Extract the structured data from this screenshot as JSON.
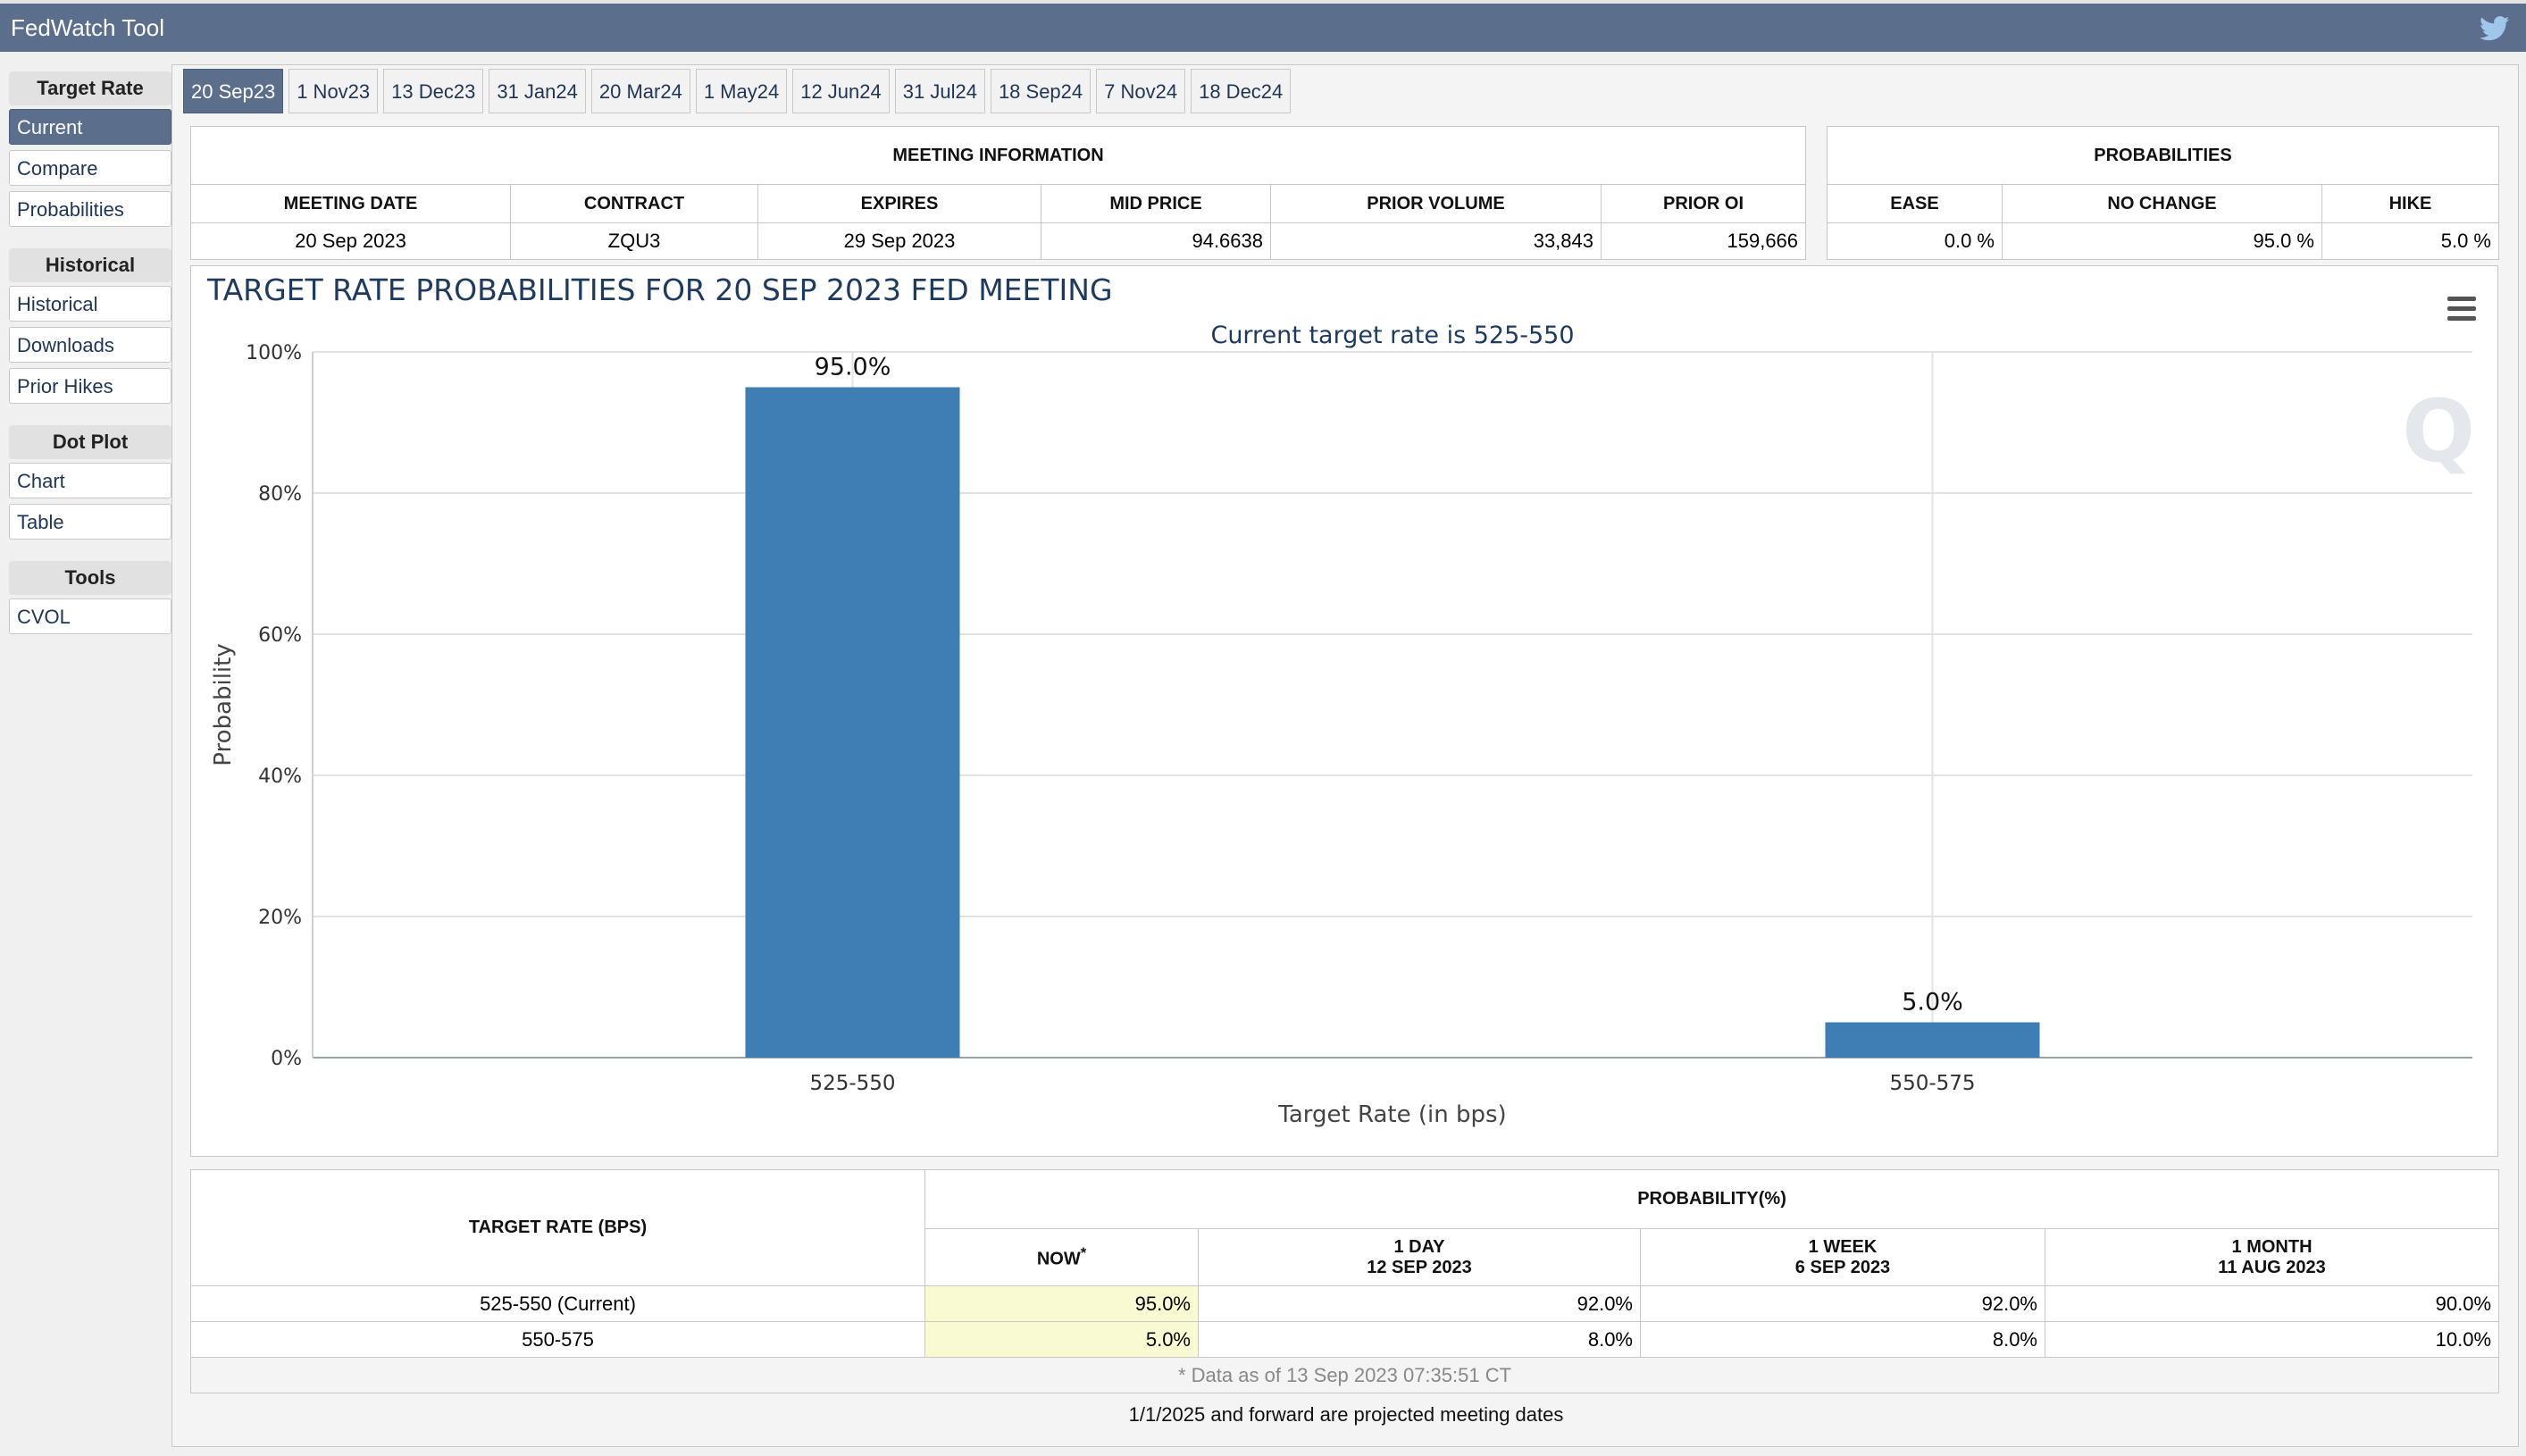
{
  "app": {
    "title": "FedWatch Tool",
    "share_icon": "twitter-icon"
  },
  "sidebar": {
    "sections": [
      {
        "title": "Target Rate",
        "items": [
          {
            "label": "Current",
            "active": true
          },
          {
            "label": "Compare"
          },
          {
            "label": "Probabilities"
          }
        ]
      },
      {
        "title": "Historical",
        "items": [
          {
            "label": "Historical"
          },
          {
            "label": "Downloads"
          },
          {
            "label": "Prior Hikes"
          }
        ]
      },
      {
        "title": "Dot Plot",
        "items": [
          {
            "label": "Chart"
          },
          {
            "label": "Table"
          }
        ]
      },
      {
        "title": "Tools",
        "items": [
          {
            "label": "CVOL"
          }
        ]
      }
    ]
  },
  "tabs": [
    "20 Sep23",
    "1 Nov23",
    "13 Dec23",
    "31 Jan24",
    "20 Mar24",
    "1 May24",
    "12 Jun24",
    "31 Jul24",
    "18 Sep24",
    "7 Nov24",
    "18 Dec24"
  ],
  "active_tab": 0,
  "meeting_info": {
    "caption": "MEETING INFORMATION",
    "headers": [
      "MEETING DATE",
      "CONTRACT",
      "EXPIRES",
      "MID PRICE",
      "PRIOR VOLUME",
      "PRIOR OI"
    ],
    "values": [
      "20 Sep 2023",
      "ZQU3",
      "29 Sep 2023",
      "94.6638",
      "33,843",
      "159,666"
    ]
  },
  "probabilities": {
    "caption": "PROBABILITIES",
    "headers": [
      "EASE",
      "NO CHANGE",
      "HIKE"
    ],
    "values": [
      "0.0 %",
      "95.0 %",
      "5.0 %"
    ]
  },
  "chart_data": {
    "type": "bar",
    "title": "TARGET RATE PROBABILITIES FOR 20 SEP 2023 FED MEETING",
    "subtitle": "Current target rate is 525-550",
    "categories": [
      "525-550",
      "550-575"
    ],
    "values": [
      95.0,
      5.0
    ],
    "data_labels": [
      "95.0%",
      "5.0%"
    ],
    "xlabel": "Target Rate (in bps)",
    "ylabel": "Probability",
    "ylim": [
      0,
      100
    ],
    "yticks": [
      "0%",
      "20%",
      "40%",
      "60%",
      "80%",
      "100%"
    ],
    "grid": true,
    "bar_color": "#3f7db5",
    "menu_icon": "hamburger-menu-icon",
    "watermark_icon": "q-logo-icon"
  },
  "history": {
    "rate_header": "TARGET RATE (BPS)",
    "prob_header": "PROBABILITY(%)",
    "columns": [
      {
        "line1": "NOW",
        "line2": ""
      },
      {
        "line1": "1 DAY",
        "line2": "12 SEP 2023"
      },
      {
        "line1": "1 WEEK",
        "line2": "6 SEP 2023"
      },
      {
        "line1": "1 MONTH",
        "line2": "11 AUG 2023"
      }
    ],
    "now_mark": "*",
    "rows": [
      {
        "rate": "525-550 (Current)",
        "values": [
          "95.0%",
          "92.0%",
          "92.0%",
          "90.0%"
        ]
      },
      {
        "rate": "550-575",
        "values": [
          "5.0%",
          "8.0%",
          "8.0%",
          "10.0%"
        ]
      }
    ],
    "data_note": "* Data as of 13 Sep 2023 07:35:51 CT"
  },
  "footnote": "1/1/2025 and forward are projected meeting dates"
}
